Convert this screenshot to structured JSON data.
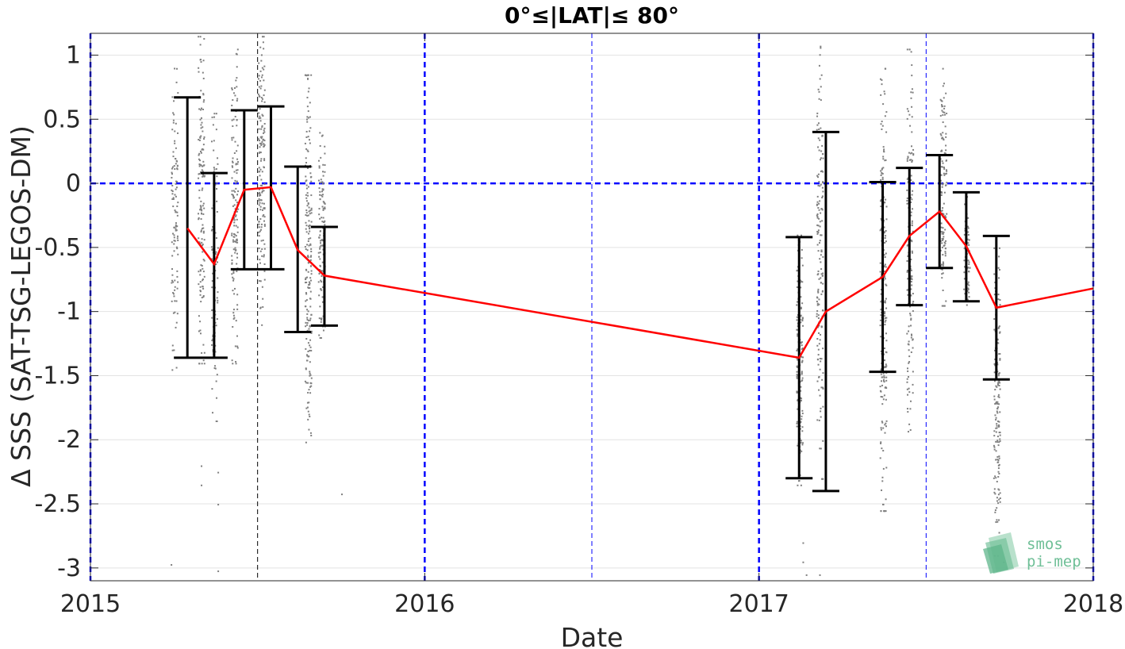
{
  "chart_data": {
    "type": "scatter",
    "title": "0°≤|LAT|≤ 80°",
    "xlabel": "Date",
    "ylabel": "Δ SSS (SAT-TSG-LEGOS-DM)",
    "xlim": [
      2015.0,
      2018.0
    ],
    "ylim": [
      -3.1,
      1.17
    ],
    "x_ticks": [
      2015,
      2016,
      2017,
      2018
    ],
    "x_tick_labels": [
      "2015",
      "2016",
      "2017",
      "2018"
    ],
    "y_ticks": [
      1,
      0.5,
      0,
      -0.5,
      -1,
      -1.5,
      -2,
      -2.5,
      -3
    ],
    "y_tick_labels": [
      "1",
      "0.5",
      "0",
      "-0.5",
      "-1",
      "-1.5",
      "-2",
      "-2.5",
      "-3"
    ],
    "grid": true,
    "zero_line": {
      "y": 0,
      "color": "#0000ff",
      "style": "dashed"
    },
    "year_lines": {
      "x": [
        2015,
        2016,
        2017,
        2018
      ],
      "color": "#0000ff",
      "style": "dashed"
    },
    "half_year_lines": [
      {
        "x": 2015.5,
        "color": "#000000"
      },
      {
        "x": 2016.5,
        "color": "#0000ff"
      },
      {
        "x": 2017.5,
        "color": "#0000ff"
      }
    ],
    "series": [
      {
        "type": "line",
        "color": "#ff0000",
        "x": [
          2015.29,
          2015.37,
          2015.46,
          2015.54,
          2015.62,
          2015.7,
          2017.12,
          2017.2,
          2017.37,
          2017.45,
          2017.54,
          2017.62,
          2017.71,
          2018.0
        ],
        "y": [
          -0.35,
          -0.63,
          -0.05,
          -0.03,
          -0.52,
          -0.72,
          -1.36,
          -1.0,
          -0.73,
          -0.41,
          -0.22,
          -0.49,
          -0.97,
          -0.82
        ]
      },
      {
        "type": "errorbar",
        "color": "#000000",
        "points": [
          {
            "x": 2015.29,
            "low": -1.36,
            "high": 0.67
          },
          {
            "x": 2015.37,
            "low": -1.36,
            "high": 0.08
          },
          {
            "x": 2015.46,
            "low": -0.67,
            "high": 0.57
          },
          {
            "x": 2015.54,
            "low": -0.67,
            "high": 0.6
          },
          {
            "x": 2015.62,
            "low": -1.16,
            "high": 0.13
          },
          {
            "x": 2015.7,
            "low": -1.11,
            "high": -0.34
          },
          {
            "x": 2017.12,
            "low": -2.3,
            "high": -0.42
          },
          {
            "x": 2017.2,
            "low": -2.4,
            "high": 0.4
          },
          {
            "x": 2017.37,
            "low": -1.47,
            "high": 0.01
          },
          {
            "x": 2017.45,
            "low": -0.95,
            "high": 0.12
          },
          {
            "x": 2017.54,
            "low": -0.66,
            "high": 0.22
          },
          {
            "x": 2017.62,
            "low": -0.92,
            "high": -0.07
          },
          {
            "x": 2017.71,
            "low": -1.53,
            "high": -0.41
          }
        ]
      },
      {
        "type": "scatter",
        "color": "#808080",
        "clusters": [
          {
            "x": 2015.25,
            "low": -1.45,
            "high": 0.95,
            "n": 110
          },
          {
            "x": 2015.33,
            "low": -1.4,
            "high": 1.15,
            "n": 150
          },
          {
            "x": 2015.37,
            "low": -1.85,
            "high": 0.55,
            "n": 90
          },
          {
            "x": 2015.43,
            "low": -1.4,
            "high": 1.05,
            "n": 140
          },
          {
            "x": 2015.51,
            "low": -1.1,
            "high": 1.15,
            "n": 150
          },
          {
            "x": 2015.65,
            "low": -2.1,
            "high": 0.85,
            "n": 200
          },
          {
            "x": 2015.69,
            "low": -1.2,
            "high": 0.4,
            "n": 140
          },
          {
            "x": 2017.12,
            "low": -2.35,
            "high": -0.4,
            "n": 160
          },
          {
            "x": 2017.18,
            "low": -2.3,
            "high": 1.15,
            "n": 170
          },
          {
            "x": 2017.37,
            "low": -2.55,
            "high": 0.9,
            "n": 220
          },
          {
            "x": 2017.45,
            "low": -2.0,
            "high": 1.05,
            "n": 160
          },
          {
            "x": 2017.55,
            "low": -0.95,
            "high": 0.9,
            "n": 130
          },
          {
            "x": 2017.62,
            "low": -1.15,
            "high": -0.1,
            "n": 70
          },
          {
            "x": 2017.71,
            "low": -2.9,
            "high": -0.5,
            "n": 160
          }
        ],
        "sparse_points": [
          {
            "x": 2015.24,
            "y": -2.97
          },
          {
            "x": 2015.33,
            "y": -2.2
          },
          {
            "x": 2015.33,
            "y": -2.35
          },
          {
            "x": 2015.38,
            "y": -2.25
          },
          {
            "x": 2015.38,
            "y": -2.5
          },
          {
            "x": 2015.38,
            "y": -3.02
          },
          {
            "x": 2015.75,
            "y": -2.42
          },
          {
            "x": 2017.13,
            "y": -2.8
          },
          {
            "x": 2017.13,
            "y": -2.95
          },
          {
            "x": 2017.14,
            "y": -3.05
          },
          {
            "x": 2017.18,
            "y": -3.05
          },
          {
            "x": 2017.73,
            "y": -2.95
          }
        ]
      }
    ]
  },
  "watermark": {
    "line1": "smos",
    "line2": "pi-mep"
  }
}
